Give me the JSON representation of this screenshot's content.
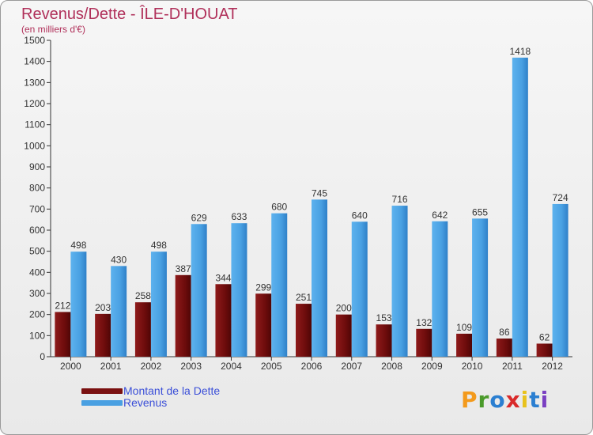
{
  "chart_data": {
    "type": "bar",
    "title": "Revenus/Dette - ÎLE-D'HOUAT",
    "subtitle": "(en milliers d'€)",
    "categories": [
      "2000",
      "2001",
      "2002",
      "2003",
      "2004",
      "2005",
      "2006",
      "2007",
      "2008",
      "2009",
      "2010",
      "2011",
      "2012"
    ],
    "series": [
      {
        "name": "Montant de la Dette",
        "color": "#7a1010",
        "values": [
          212,
          203,
          258,
          387,
          344,
          299,
          251,
          200,
          153,
          132,
          109,
          86,
          62
        ]
      },
      {
        "name": "Revenus",
        "color": "#4aa0e2",
        "values": [
          498,
          430,
          498,
          629,
          633,
          680,
          745,
          640,
          716,
          642,
          655,
          1418,
          724
        ]
      }
    ],
    "ylim": [
      0,
      1500
    ],
    "yticks": [
      0,
      100,
      200,
      300,
      400,
      500,
      600,
      700,
      800,
      900,
      1000,
      1100,
      1200,
      1300,
      1400,
      1500
    ],
    "grid": false,
    "legend_position": "bottom-left"
  },
  "brand": {
    "letters": [
      "P",
      "r",
      "o",
      "x",
      "i",
      "t",
      "i"
    ],
    "colors": [
      "#f39a1c",
      "#4a9a2a",
      "#2b7fd1",
      "#d92a2a",
      "#e8c21c",
      "#2b7fd1",
      "#7a3fc2"
    ]
  }
}
